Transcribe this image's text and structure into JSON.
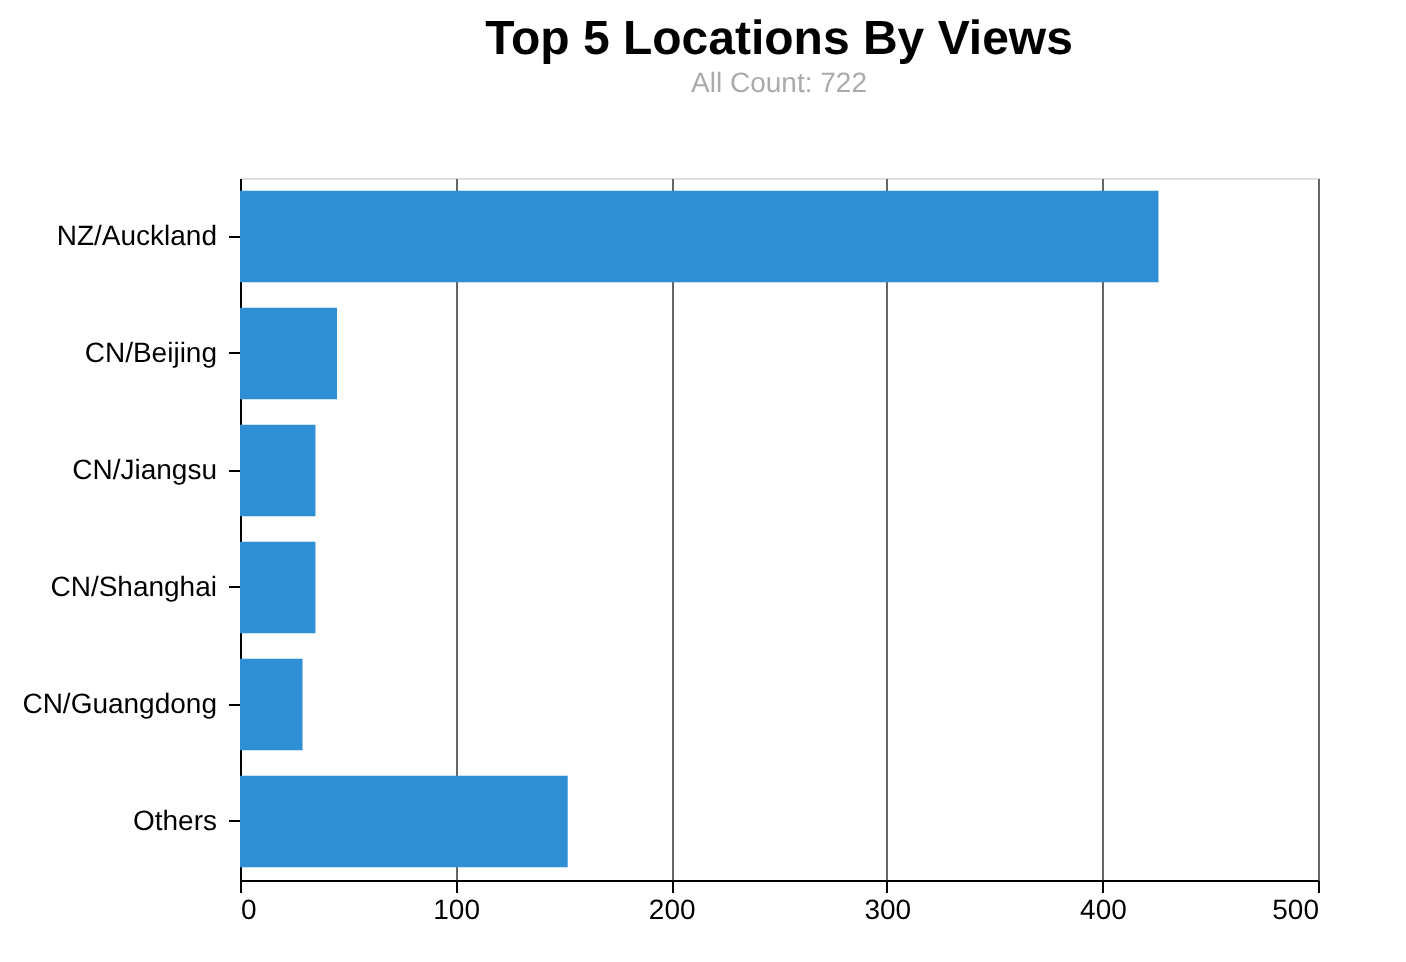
{
  "chart_data": {
    "type": "bar",
    "orientation": "horizontal",
    "title": "Top 5 Locations By Views",
    "subtitle": "All Count: 722",
    "categories": [
      "NZ/Auckland",
      "CN/Beijing",
      "CN/Jiangsu",
      "CN/Shanghai",
      "CN/Guangdong",
      "Others"
    ],
    "values": [
      426,
      45,
      35,
      35,
      29,
      152
    ],
    "color": "#2e8fd4",
    "xlim": [
      0,
      500
    ],
    "xticks": [
      0,
      100,
      200,
      300,
      400,
      500
    ],
    "grid": "x"
  }
}
